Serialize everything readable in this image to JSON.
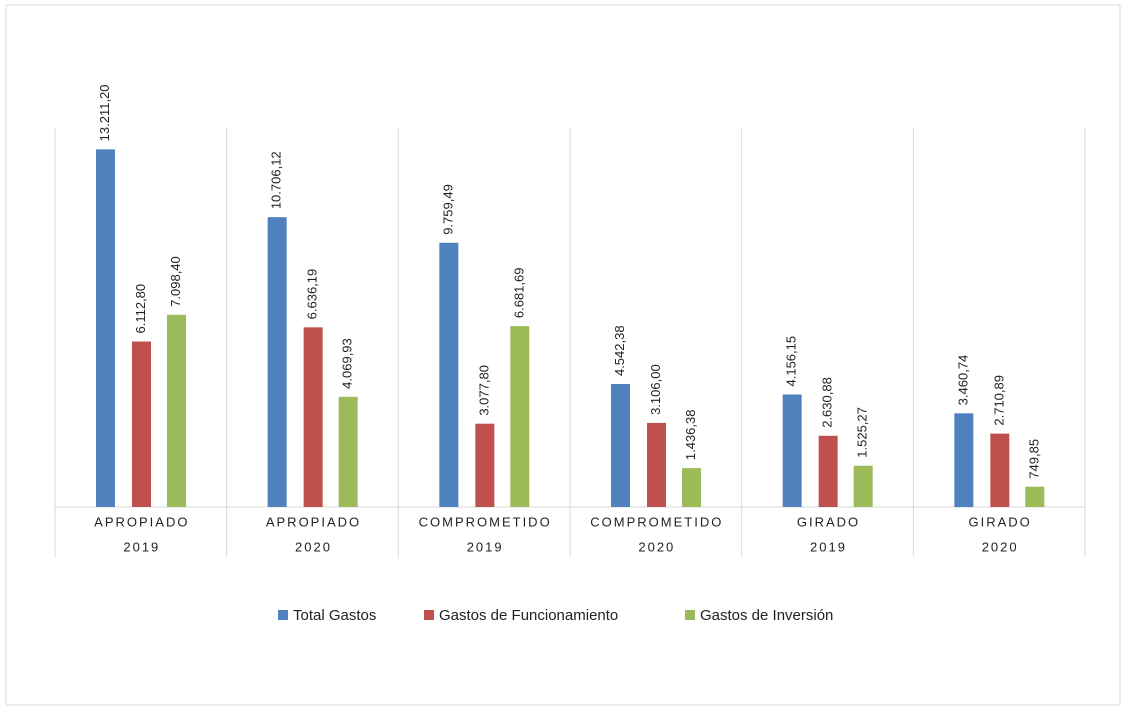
{
  "chart_data": {
    "type": "bar",
    "categories": [
      [
        "APROPIADO",
        "2019"
      ],
      [
        "APROPIADO",
        "2020"
      ],
      [
        "COMPROMETIDO",
        "2019"
      ],
      [
        "COMPROMETIDO",
        "2020"
      ],
      [
        "GIRADO",
        "2019"
      ],
      [
        "GIRADO",
        "2020"
      ]
    ],
    "series": [
      {
        "name": "Total Gastos",
        "color": "#4f81bd",
        "values": [
          13211.2,
          10706.12,
          9759.49,
          4542.38,
          4156.15,
          3460.74
        ],
        "value_labels": [
          "13.211,20",
          "10.706,12",
          "9.759,49",
          "4.542,38",
          "4.156,15",
          "3.460,74"
        ]
      },
      {
        "name": "Gastos de Funcionamiento",
        "color": "#c0504d",
        "values": [
          6112.8,
          6636.19,
          3077.8,
          3106.0,
          2630.88,
          2710.89
        ],
        "value_labels": [
          "6.112,80",
          "6.636,19",
          "3.077,80",
          "3.106,00",
          "2.630,88",
          "2.710,89"
        ]
      },
      {
        "name": "Gastos de Inversión",
        "color": "#9bbb59",
        "values": [
          7098.4,
          4069.93,
          6681.69,
          1436.38,
          1525.27,
          749.85
        ],
        "value_labels": [
          "7.098,40",
          "4.069,93",
          "6.681,69",
          "1.436,38",
          "1.525,27",
          "749,85"
        ]
      }
    ],
    "ylim": [
      0,
      14000
    ],
    "legend": "bottom"
  }
}
